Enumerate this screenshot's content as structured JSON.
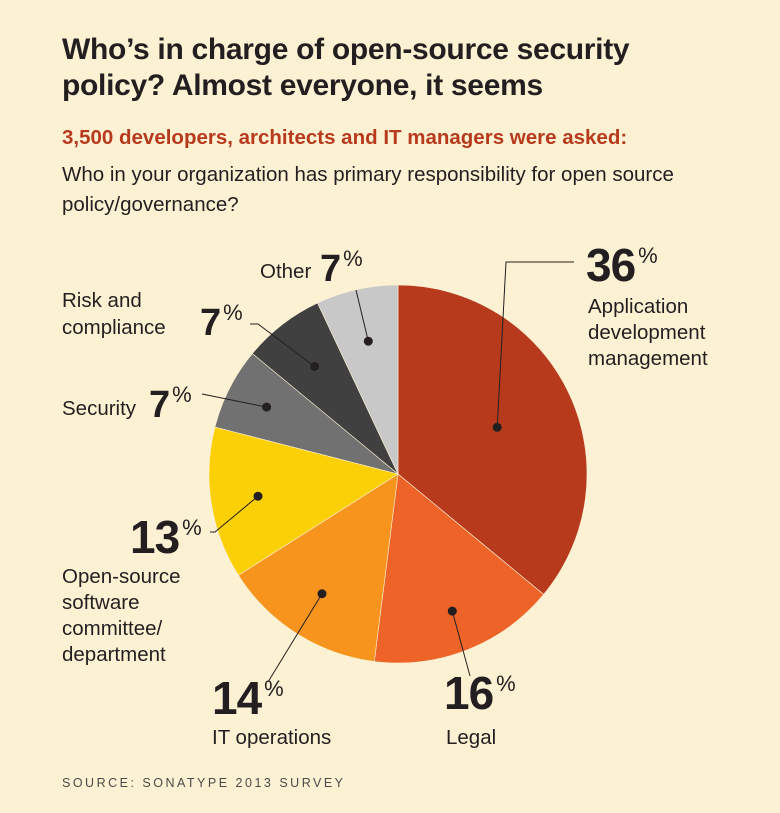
{
  "title": "Who’s in charge of open-source security policy? Almost everyone, it seems",
  "subtitle": "3,500 developers, architects and IT managers were asked:",
  "question": "Who in your organization has primary responsibility for open source policy/governance?",
  "source": "SOURCE: SONATYPE 2013 SURVEY",
  "chart_data": {
    "type": "pie",
    "slices": [
      {
        "label": "Application development management",
        "value": 36,
        "value_label": "36",
        "color": "#b73a1d"
      },
      {
        "label": "Legal",
        "value": 16,
        "value_label": "16",
        "color": "#ee6327"
      },
      {
        "label": "IT operations",
        "value": 14,
        "value_label": "14",
        "color": "#f7941d"
      },
      {
        "label": "Open-source software committee/ department",
        "value": 13,
        "value_label": "13",
        "color": "#fcd007"
      },
      {
        "label": "Security",
        "value": 7,
        "value_label": "7",
        "color": "#717171"
      },
      {
        "label": "Risk and compliance",
        "value": 7,
        "value_label": "7",
        "color": "#404040"
      },
      {
        "label": "Other",
        "value": 7,
        "value_label": "7",
        "color": "#c8c8c8"
      }
    ],
    "percent_sign": "%"
  }
}
